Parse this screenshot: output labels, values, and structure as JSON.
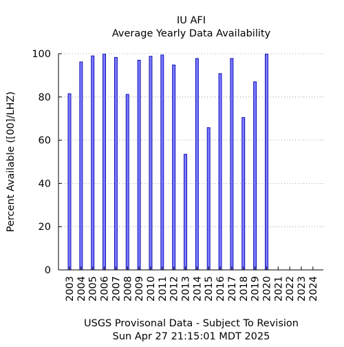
{
  "chart_data": {
    "type": "bar",
    "title": "IU AFI",
    "subtitle": "Average Yearly Data Availability",
    "ylabel": "Percent Available ([00]/LHZ)",
    "xlabel": "USGS Provisonal Data - Subject To Revision",
    "footer": "Sun Apr 27 21:15:01 MDT 2025",
    "ylim": [
      0,
      100
    ],
    "yticks": [
      0,
      20,
      40,
      60,
      80,
      100
    ],
    "grid": "horizontal-dotted",
    "bar_color": "#7b7bff",
    "bar_edge_color": "#0000aa",
    "categories": [
      "2003",
      "2004",
      "2005",
      "2006",
      "2007",
      "2008",
      "2009",
      "2010",
      "2011",
      "2012",
      "2013",
      "2014",
      "2015",
      "2016",
      "2017",
      "2018",
      "2019",
      "2020",
      "2021",
      "2022",
      "2023",
      "2024"
    ],
    "values": [
      81.5,
      96.2,
      99,
      99.8,
      98.3,
      81.2,
      97,
      98.8,
      99.4,
      94.8,
      53.5,
      97.8,
      65.8,
      90.8,
      97.8,
      70.5,
      87,
      99.8,
      null,
      null,
      null,
      null
    ]
  }
}
